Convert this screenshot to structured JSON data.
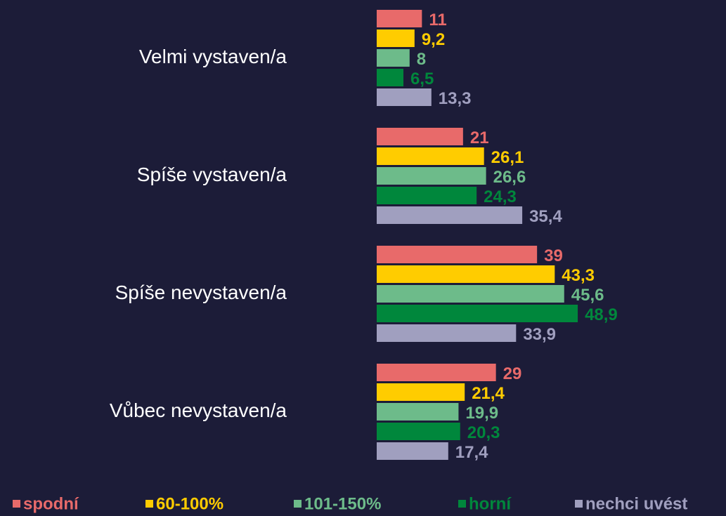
{
  "chart_data": {
    "type": "barh",
    "categories": [
      "Velmi vystaven/a",
      "Spíše vystaven/a",
      "Spíše nevystaven/a",
      "Vůbec nevystaven/a"
    ],
    "series": [
      {
        "name": "spodní",
        "color": "#e86a6a",
        "values": [
          11,
          21,
          39,
          29
        ]
      },
      {
        "name": "60-100%",
        "color": "#ffcc00",
        "values": [
          9.2,
          26.1,
          43.3,
          21.4
        ],
        "value_labels": [
          "9,2",
          "26,1",
          "43,3",
          "21,4"
        ]
      },
      {
        "name": "101-150%",
        "color": "#6dbb8a",
        "values": [
          8,
          26.6,
          45.6,
          19.9
        ],
        "value_labels": [
          "8",
          "26,6",
          "45,6",
          "19,9"
        ]
      },
      {
        "name": "horní",
        "color": "#00873c",
        "values": [
          6.5,
          24.3,
          48.9,
          20.3
        ],
        "value_labels": [
          "6,5",
          "24,3",
          "48,9",
          "20,3"
        ]
      },
      {
        "name": "nechci uvést",
        "color": "#a09fbf",
        "values": [
          13.3,
          35.4,
          33.9,
          17.4
        ],
        "value_labels": [
          "13,3",
          "35,4",
          "33,9",
          "17,4"
        ]
      }
    ],
    "legend": "bottom"
  }
}
